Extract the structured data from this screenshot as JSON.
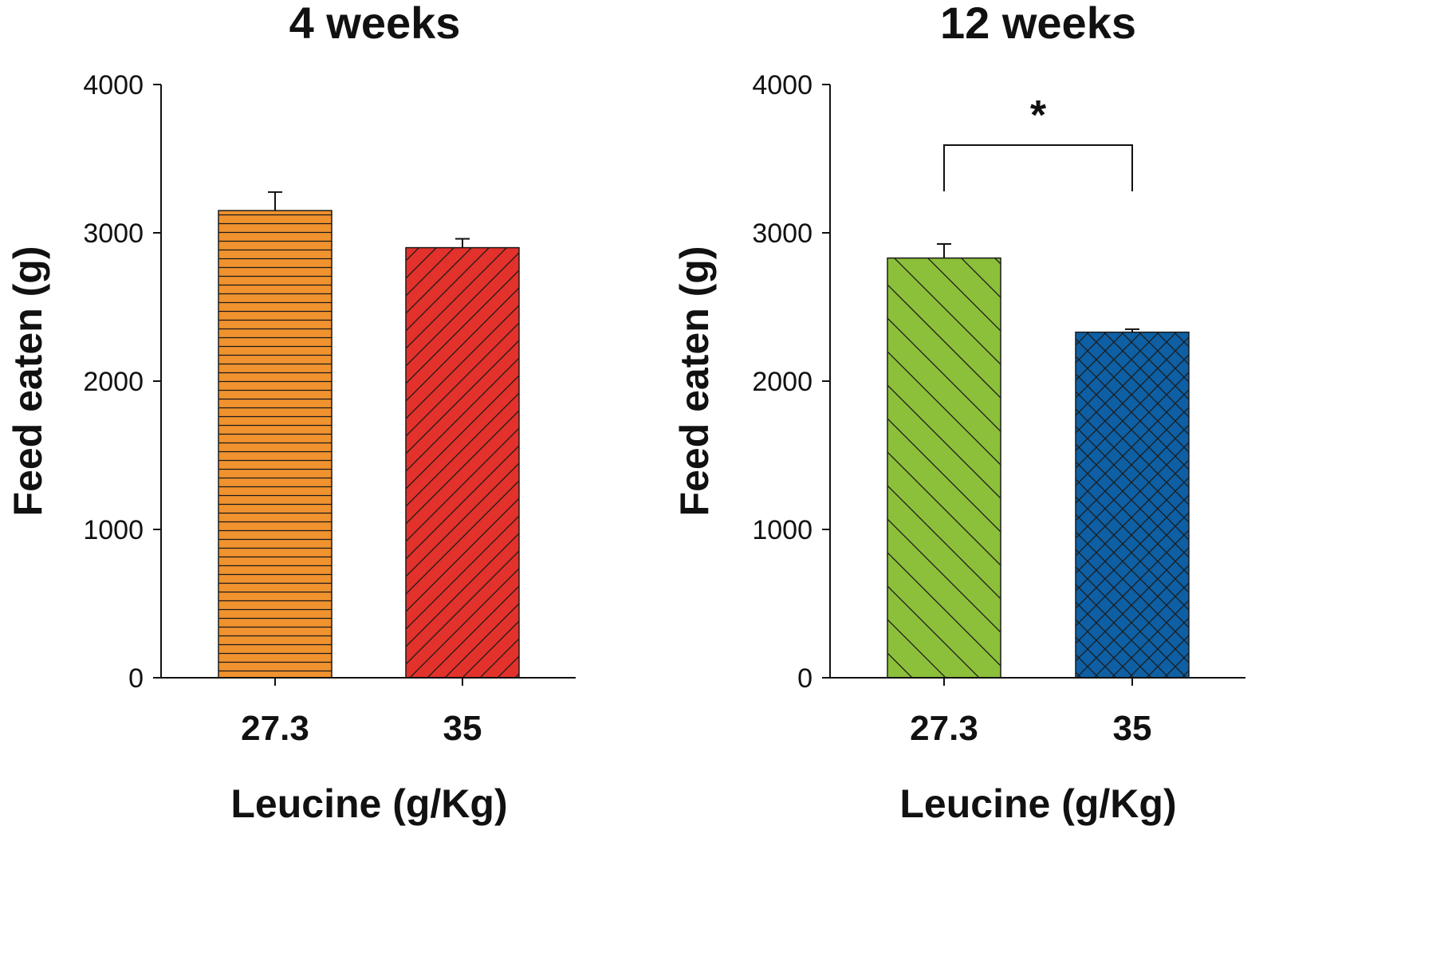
{
  "chart_data": [
    {
      "type": "bar",
      "title": "4 weeks",
      "xlabel": "Leucine (g/Kg)",
      "ylabel": "Feed eaten (g)",
      "ylim": [
        0,
        4000
      ],
      "yticks": [
        "0",
        "1000",
        "2000",
        "3000",
        "4000"
      ],
      "categories": [
        "27.3",
        "35"
      ],
      "values": [
        3150,
        2900
      ],
      "errors": [
        125,
        60
      ],
      "colors": [
        "#f0922e",
        "#e3312b"
      ],
      "patterns": [
        "horizontal",
        "diagonal-up"
      ],
      "significance": null
    },
    {
      "type": "bar",
      "title": "12 weeks",
      "xlabel": "Leucine (g/Kg)",
      "ylabel": "Feed eaten (g)",
      "ylim": [
        0,
        4000
      ],
      "yticks": [
        "0",
        "1000",
        "2000",
        "3000",
        "4000"
      ],
      "categories": [
        "27.3",
        "35"
      ],
      "values": [
        2830,
        2330
      ],
      "errors": [
        95,
        20
      ],
      "colors": [
        "#8cbf3a",
        "#0e5fa3"
      ],
      "patterns": [
        "diagonal-down",
        "crosshatch"
      ],
      "significance": {
        "label": "*",
        "between": [
          0,
          1
        ]
      }
    }
  ]
}
